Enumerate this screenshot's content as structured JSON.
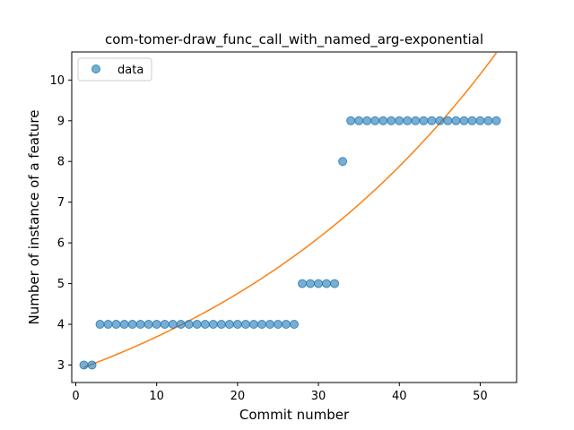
{
  "chart_data": {
    "type": "scatter",
    "title": "com-tomer-draw_func_call_with_named_arg-exponential",
    "xlabel": "Commit number",
    "ylabel": "Number of instance of a feature",
    "xlim": [
      -0.5,
      54.5
    ],
    "ylim": [
      2.57,
      10.69
    ],
    "xticks": [
      0,
      10,
      20,
      30,
      40,
      50
    ],
    "yticks": [
      3,
      4,
      5,
      6,
      7,
      8,
      9,
      10
    ],
    "grid": false,
    "legend": {
      "location": "upper-left",
      "entries": [
        "data"
      ]
    },
    "series": [
      {
        "name": "data",
        "kind": "scatter",
        "color": "#1f77b4",
        "x": [
          1,
          2,
          3,
          4,
          5,
          6,
          7,
          8,
          9,
          10,
          11,
          12,
          13,
          14,
          15,
          16,
          17,
          18,
          19,
          20,
          21,
          22,
          23,
          24,
          25,
          26,
          27,
          28,
          29,
          30,
          31,
          32,
          33,
          34,
          35,
          36,
          37,
          38,
          39,
          40,
          41,
          42,
          43,
          44,
          45,
          46,
          47,
          48,
          49,
          50,
          51,
          52
        ],
        "y": [
          3,
          3,
          4,
          4,
          4,
          4,
          4,
          4,
          4,
          4,
          4,
          4,
          4,
          4,
          4,
          4,
          4,
          4,
          4,
          4,
          4,
          4,
          4,
          4,
          4,
          4,
          4,
          5,
          5,
          5,
          5,
          5,
          8,
          9,
          9,
          9,
          9,
          9,
          9,
          9,
          9,
          9,
          9,
          9,
          9,
          9,
          9,
          9,
          9,
          9,
          9,
          9
        ]
      },
      {
        "name": "",
        "kind": "line",
        "color": "#ff7f0e",
        "fit": {
          "a": 2.87,
          "b": 0.02525,
          "x_start": 1,
          "x_end": 52
        }
      }
    ]
  }
}
